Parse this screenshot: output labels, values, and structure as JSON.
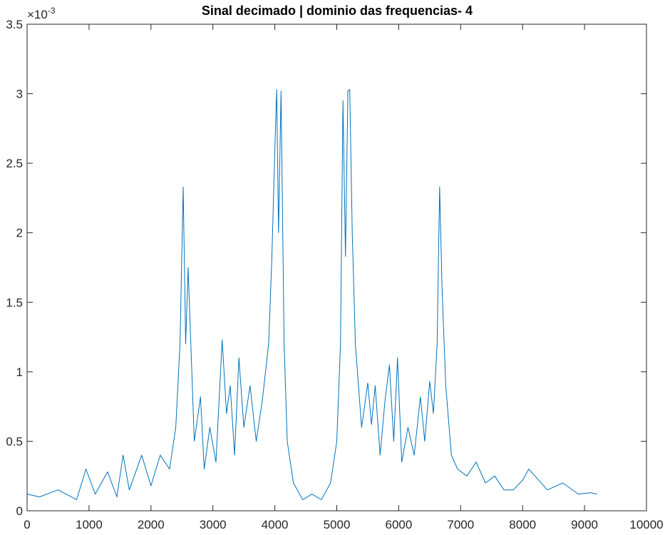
{
  "chart_data": {
    "type": "line",
    "title": "Sinal decimado | dominio das frequencias- 4",
    "xlabel": "",
    "ylabel": "",
    "xlim": [
      0,
      10000
    ],
    "ylim": [
      0,
      0.0035
    ],
    "x_ticks": [
      0,
      1000,
      2000,
      3000,
      4000,
      5000,
      6000,
      7000,
      8000,
      9000,
      10000
    ],
    "x_tick_labels": [
      "0",
      "1000",
      "2000",
      "3000",
      "4000",
      "5000",
      "6000",
      "7000",
      "8000",
      "9000",
      "10000"
    ],
    "y_ticks": [
      0,
      0.0005,
      0.001,
      0.0015,
      0.002,
      0.0025,
      0.003,
      0.0035
    ],
    "y_tick_labels": [
      "0",
      "0.5",
      "1",
      "1.5",
      "2",
      "2.5",
      "3",
      "3.5"
    ],
    "y_exponent_label": "×10",
    "y_exponent_power": "-3",
    "grid": false,
    "series_color": "#0072BD",
    "series": [
      {
        "x": [
          0,
          200,
          500,
          800,
          950,
          1100,
          1300,
          1450,
          1550,
          1650,
          1850,
          2000,
          2150,
          2300,
          2400,
          2470,
          2520,
          2560,
          2600,
          2700,
          2800,
          2860,
          2950,
          3050,
          3150,
          3220,
          3280,
          3350,
          3420,
          3500,
          3600,
          3700,
          3800,
          3900,
          3950,
          4000,
          4030,
          4060,
          4100,
          4150,
          4200,
          4300,
          4450,
          4600,
          4750,
          4900,
          5000,
          5060,
          5100,
          5140,
          5180,
          5210,
          5250,
          5300,
          5400,
          5500,
          5560,
          5620,
          5700,
          5780,
          5850,
          5920,
          5980,
          6050,
          6150,
          6250,
          6350,
          6420,
          6500,
          6560,
          6620,
          6660,
          6700,
          6760,
          6850,
          6950,
          7100,
          7250,
          7400,
          7550,
          7700,
          7850,
          8000,
          8100,
          8200,
          8400,
          8650,
          8900,
          9100,
          9200
        ],
        "y": [
          0.00012,
          0.0001,
          0.00015,
          8e-05,
          0.0003,
          0.00012,
          0.00028,
          0.0001,
          0.0004,
          0.00015,
          0.0004,
          0.00018,
          0.0004,
          0.0003,
          0.0006,
          0.0012,
          0.00233,
          0.0012,
          0.00175,
          0.0005,
          0.00082,
          0.0003,
          0.0006,
          0.00035,
          0.00123,
          0.0007,
          0.0009,
          0.0004,
          0.0011,
          0.0006,
          0.0009,
          0.0005,
          0.0008,
          0.0012,
          0.0018,
          0.0026,
          0.00303,
          0.002,
          0.00302,
          0.0012,
          0.0005,
          0.0002,
          8e-05,
          0.00012,
          8e-05,
          0.0002,
          0.0005,
          0.0012,
          0.00295,
          0.00183,
          0.00302,
          0.00303,
          0.002,
          0.0012,
          0.0006,
          0.00092,
          0.00062,
          0.0009,
          0.0004,
          0.0008,
          0.00105,
          0.0005,
          0.0011,
          0.00035,
          0.0006,
          0.0004,
          0.00082,
          0.0005,
          0.00093,
          0.0007,
          0.0012,
          0.00233,
          0.0016,
          0.0009,
          0.0004,
          0.0003,
          0.00025,
          0.00035,
          0.0002,
          0.00025,
          0.00015,
          0.00015,
          0.00022,
          0.0003,
          0.00025,
          0.00015,
          0.0002,
          0.00012,
          0.00013,
          0.00012
        ]
      }
    ]
  }
}
